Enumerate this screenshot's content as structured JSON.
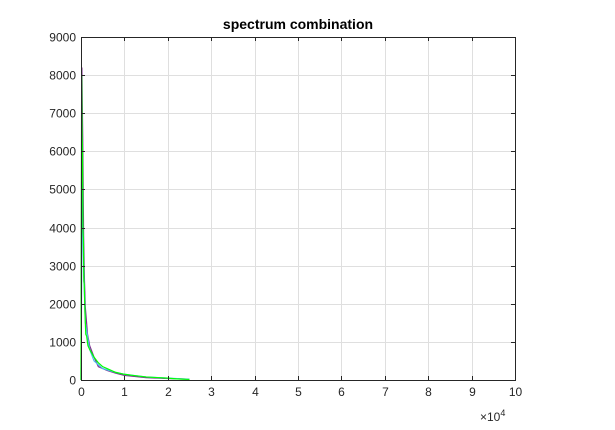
{
  "chart_data": {
    "type": "line",
    "title": "spectrum combination",
    "xlabel": "",
    "ylabel": "",
    "xlim": [
      0,
      100000
    ],
    "ylim": [
      0,
      9000
    ],
    "x_ticks": [
      0,
      10000,
      20000,
      30000,
      40000,
      50000,
      60000,
      70000,
      80000,
      90000,
      100000
    ],
    "x_tick_labels": [
      "0",
      "1",
      "2",
      "3",
      "4",
      "5",
      "6",
      "7",
      "8",
      "9",
      "10"
    ],
    "x_exponent": {
      "base": "×10",
      "power": "4"
    },
    "y_ticks": [
      0,
      1000,
      2000,
      3000,
      4000,
      5000,
      6000,
      7000,
      8000,
      9000
    ],
    "y_tick_labels": [
      "0",
      "1000",
      "2000",
      "3000",
      "4000",
      "5000",
      "6000",
      "7000",
      "8000",
      "9000"
    ],
    "grid": true,
    "series": [
      {
        "color": "#7e2f8e",
        "x": [
          0,
          200,
          400,
          600,
          800,
          1000,
          1500,
          2000,
          3000,
          4000,
          6000,
          8000,
          10000,
          15000,
          20000,
          25000
        ],
        "y": [
          0,
          8200,
          6300,
          3800,
          2600,
          1900,
          1200,
          900,
          600,
          350,
          250,
          180,
          120,
          60,
          40,
          20
        ]
      },
      {
        "color": "#4dbeee",
        "x": [
          0,
          300,
          600,
          1000,
          2000,
          3000,
          5000,
          8000,
          10000,
          15000,
          20000,
          25000
        ],
        "y": [
          0,
          5200,
          3000,
          1500,
          800,
          500,
          300,
          200,
          150,
          80,
          50,
          20
        ]
      },
      {
        "color": "#00ff00",
        "x": [
          0,
          150,
          250,
          350,
          450,
          550,
          650,
          750,
          900,
          1100,
          1300,
          1600,
          2000,
          2500,
          3000,
          4000,
          5000,
          6000,
          8000,
          10000,
          12000,
          15000,
          18000,
          20000,
          22000,
          25000
        ],
        "y": [
          0,
          8000,
          6400,
          6000,
          3900,
          3700,
          2600,
          2500,
          1800,
          1200,
          1150,
          900,
          800,
          700,
          600,
          450,
          350,
          300,
          200,
          150,
          120,
          80,
          60,
          50,
          30,
          15
        ]
      }
    ]
  }
}
